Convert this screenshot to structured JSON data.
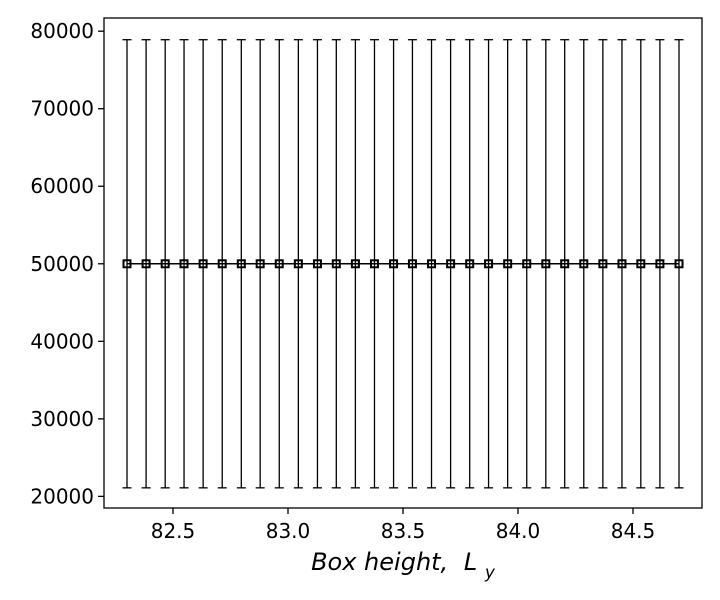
{
  "chart_data": {
    "type": "scatter",
    "title": "",
    "xlabel": "Box height,",
    "xlabel_symbol": "L",
    "xlabel_subscript": "y",
    "ylabel": "",
    "xlim": [
      82.2,
      84.8
    ],
    "ylim": [
      18500,
      81700
    ],
    "x_ticks": [
      82.5,
      83.0,
      83.5,
      84.0,
      84.5
    ],
    "x_tick_labels": [
      "82.5",
      "83.0",
      "83.5",
      "84.0",
      "84.5"
    ],
    "y_ticks": [
      20000,
      30000,
      40000,
      50000,
      60000,
      70000,
      80000
    ],
    "y_tick_labels": [
      "20000",
      "30000",
      "40000",
      "50000",
      "60000",
      "70000",
      "80000"
    ],
    "grid": false,
    "marker": "square-open",
    "color": "#000000",
    "series": [
      {
        "x": [
          82.3,
          82.383,
          82.466,
          82.548,
          82.631,
          82.714,
          82.797,
          82.879,
          82.962,
          83.045,
          83.128,
          83.21,
          83.293,
          83.376,
          83.459,
          83.541,
          83.624,
          83.707,
          83.79,
          83.872,
          83.955,
          84.038,
          84.121,
          84.203,
          84.286,
          84.369,
          84.452,
          84.534,
          84.617,
          84.7
        ],
        "y": [
          50000,
          50000,
          50000,
          50000,
          50000,
          50000,
          50000,
          50000,
          50000,
          50000,
          50000,
          50000,
          50000,
          50000,
          50000,
          50000,
          50000,
          50000,
          50000,
          50000,
          50000,
          50000,
          50000,
          50000,
          50000,
          50000,
          50000,
          50000,
          50000,
          50000
        ],
        "yerr": [
          28900,
          28900,
          28900,
          28900,
          28900,
          28900,
          28900,
          28900,
          28900,
          28900,
          28900,
          28900,
          28900,
          28900,
          28900,
          28900,
          28900,
          28900,
          28900,
          28900,
          28900,
          28900,
          28900,
          28900,
          28900,
          28900,
          28900,
          28900,
          28900,
          28900
        ]
      }
    ]
  }
}
